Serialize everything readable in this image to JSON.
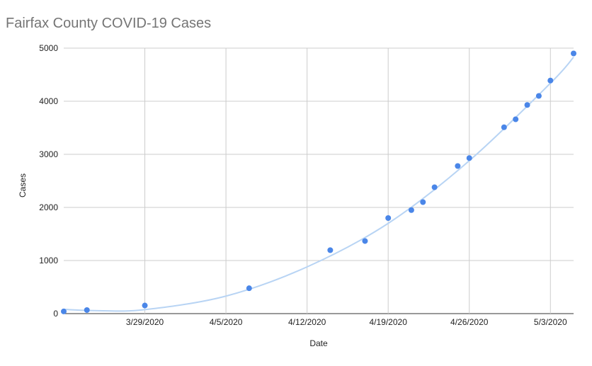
{
  "chart_data": {
    "type": "scatter",
    "title": "Fairfax County COVID-19 Cases",
    "xlabel": "Date",
    "ylabel": "Cases",
    "ylim": [
      0,
      5000
    ],
    "xlim": [
      "2020-03-22",
      "2020-05-04"
    ],
    "grid": true,
    "legend": "none",
    "y_ticks": [
      0,
      1000,
      2000,
      3000,
      4000,
      5000
    ],
    "x_ticks": [
      {
        "date": "2020-03-29",
        "label": "3/29/2020"
      },
      {
        "date": "2020-04-05",
        "label": "4/5/2020"
      },
      {
        "date": "2020-04-12",
        "label": "4/12/2020"
      },
      {
        "date": "2020-04-19",
        "label": "4/19/2020"
      },
      {
        "date": "2020-04-26",
        "label": "4/26/2020"
      },
      {
        "date": "2020-05-03",
        "label": "5/3/2020"
      }
    ],
    "colors": {
      "points": "#4a86e8",
      "trendline": "#b8d4f4",
      "gridline": "#cccccc",
      "title": "#757575"
    },
    "series": [
      {
        "values": [
          {
            "x": "2020-03-22",
            "y": 41
          },
          {
            "x": "2020-03-24",
            "y": 67
          },
          {
            "x": "2020-03-29",
            "y": 153
          },
          {
            "x": "2020-04-07",
            "y": 478
          },
          {
            "x": "2020-04-14",
            "y": 1195
          },
          {
            "x": "2020-04-17",
            "y": 1367
          },
          {
            "x": "2020-04-19",
            "y": 1800
          },
          {
            "x": "2020-04-21",
            "y": 1950
          },
          {
            "x": "2020-04-22",
            "y": 2100
          },
          {
            "x": "2020-04-23",
            "y": 2380
          },
          {
            "x": "2020-04-25",
            "y": 2780
          },
          {
            "x": "2020-04-26",
            "y": 2930
          },
          {
            "x": "2020-04-29",
            "y": 3510
          },
          {
            "x": "2020-04-30",
            "y": 3660
          },
          {
            "x": "2020-05-01",
            "y": 3930
          },
          {
            "x": "2020-05-02",
            "y": 4100
          },
          {
            "x": "2020-05-03",
            "y": 4390
          },
          {
            "x": "2020-05-05",
            "y": 4900
          }
        ]
      }
    ],
    "trendline": {
      "type": "polynomial",
      "degree": 2,
      "points": [
        {
          "x": "2020-03-22",
          "y": 80
        },
        {
          "x": "2020-03-25",
          "y": 55
        },
        {
          "x": "2020-03-29",
          "y": 75
        },
        {
          "x": "2020-04-05",
          "y": 330
        },
        {
          "x": "2020-04-12",
          "y": 880
        },
        {
          "x": "2020-04-19",
          "y": 1700
        },
        {
          "x": "2020-04-26",
          "y": 2880
        },
        {
          "x": "2020-05-03",
          "y": 4340
        },
        {
          "x": "2020-05-05",
          "y": 4830
        }
      ]
    }
  }
}
